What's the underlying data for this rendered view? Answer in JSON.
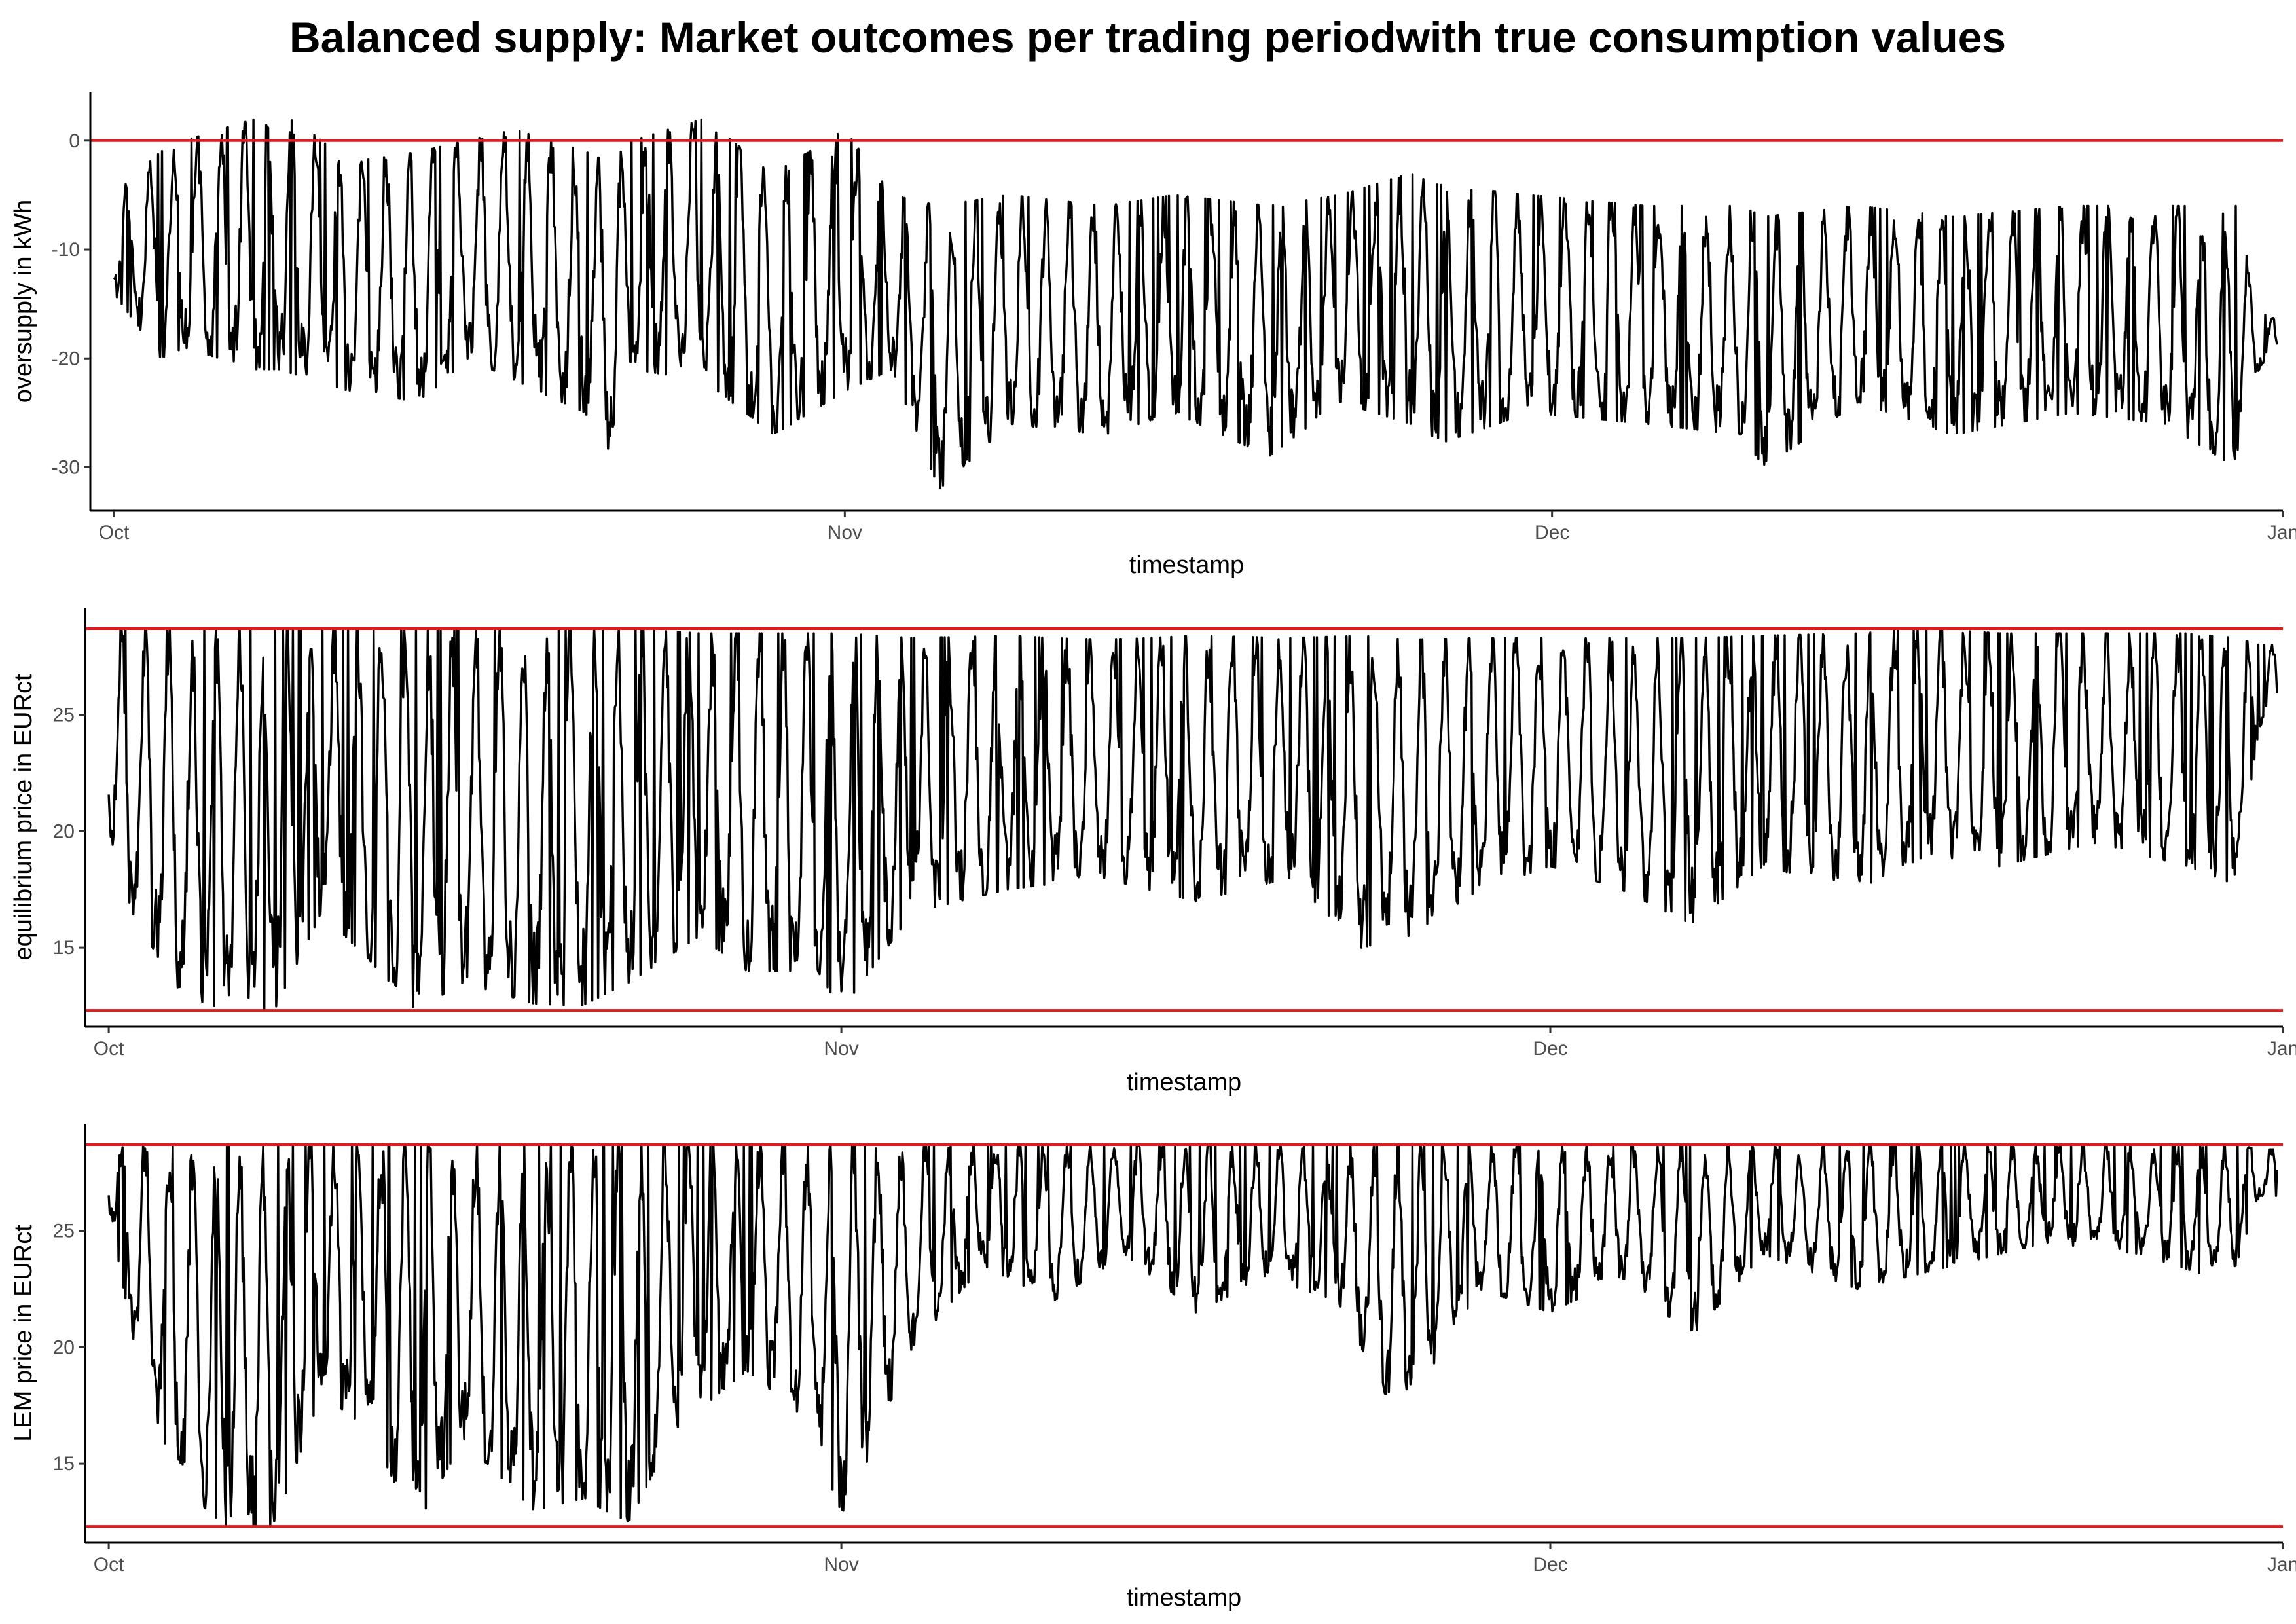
{
  "title": "Balanced supply: Market outcomes per trading periodwith true consumption values",
  "colors": {
    "series": "#000000",
    "reference": "#e41a1c"
  },
  "chart_data": [
    {
      "type": "line",
      "xlabel": "timestamp",
      "ylabel": "oversupply in kWh",
      "x_range": [
        "2023-09-30",
        "2024-01-01"
      ],
      "ylim": [
        -34,
        4.5
      ],
      "yticks": [
        {
          "value": 0,
          "label": "0"
        },
        {
          "value": -10,
          "label": "-10"
        },
        {
          "value": -20,
          "label": "-20"
        },
        {
          "value": -30,
          "label": "-30"
        }
      ],
      "xticks": [
        {
          "date": "2023-10-01",
          "label": "Oct"
        },
        {
          "date": "2023-11-01",
          "label": "Nov"
        },
        {
          "date": "2023-12-01",
          "label": "Dec"
        },
        {
          "date": "2024-01-01",
          "label": "Jan"
        }
      ],
      "hlines": [
        0
      ],
      "series_start": "2023-10-01",
      "series_end": "2023-12-31",
      "envelope": [
        {
          "date": "2023-10-01",
          "max": -5,
          "min": -14
        },
        {
          "date": "2023-10-03",
          "max": -1,
          "min": -20
        },
        {
          "date": "2023-10-04",
          "max": 0,
          "min": -19
        },
        {
          "date": "2023-10-07",
          "max": 2,
          "min": -21
        },
        {
          "date": "2023-10-08",
          "max": 3,
          "min": -21
        },
        {
          "date": "2023-10-11",
          "max": -2,
          "min": -23
        },
        {
          "date": "2023-10-14",
          "max": -1,
          "min": -24
        },
        {
          "date": "2023-10-16",
          "max": 0,
          "min": -20
        },
        {
          "date": "2023-10-18",
          "max": 1,
          "min": -22
        },
        {
          "date": "2023-10-21",
          "max": -1,
          "min": -25
        },
        {
          "date": "2023-10-22",
          "max": -2,
          "min": -29
        },
        {
          "date": "2023-10-23",
          "max": 0,
          "min": -21
        },
        {
          "date": "2023-10-26",
          "max": 2,
          "min": -22
        },
        {
          "date": "2023-10-29",
          "max": -3,
          "min": -27
        },
        {
          "date": "2023-11-01",
          "max": 1,
          "min": -23
        },
        {
          "date": "2023-11-03",
          "max": -5,
          "min": -21
        },
        {
          "date": "2023-11-05",
          "max": -6,
          "min": -32
        },
        {
          "date": "2023-11-08",
          "max": -5,
          "min": -26
        },
        {
          "date": "2023-11-12",
          "max": -6,
          "min": -27
        },
        {
          "date": "2023-11-15",
          "max": -5,
          "min": -25
        },
        {
          "date": "2023-11-19",
          "max": -6,
          "min": -29
        },
        {
          "date": "2023-11-22",
          "max": -5,
          "min": -24
        },
        {
          "date": "2023-11-25",
          "max": -3,
          "min": -26
        },
        {
          "date": "2023-11-26",
          "max": -4,
          "min": -28
        },
        {
          "date": "2023-11-30",
          "max": -5,
          "min": -25
        },
        {
          "date": "2023-12-05",
          "max": -6,
          "min": -26
        },
        {
          "date": "2023-12-09",
          "max": -6,
          "min": -27
        },
        {
          "date": "2023-12-10",
          "max": -7,
          "min": -30
        },
        {
          "date": "2023-12-14",
          "max": -6,
          "min": -24
        },
        {
          "date": "2023-12-18",
          "max": -7,
          "min": -27
        },
        {
          "date": "2023-12-23",
          "max": -6,
          "min": -25
        },
        {
          "date": "2023-12-27",
          "max": -6,
          "min": -26
        },
        {
          "date": "2023-12-30",
          "max": -6,
          "min": -30
        },
        {
          "date": "2023-12-31",
          "max": -16,
          "min": -21
        }
      ]
    },
    {
      "type": "line",
      "xlabel": "timestamp",
      "ylabel": "equilibrium price in EURct",
      "x_range": [
        "2023-09-30",
        "2024-01-01"
      ],
      "ylim": [
        11.6,
        29.6
      ],
      "yticks": [
        {
          "value": 25,
          "label": "25"
        },
        {
          "value": 20,
          "label": "20"
        },
        {
          "value": 15,
          "label": "15"
        }
      ],
      "xticks": [
        {
          "date": "2023-10-01",
          "label": "Oct"
        },
        {
          "date": "2023-11-01",
          "label": "Nov"
        },
        {
          "date": "2023-12-01",
          "label": "Dec"
        },
        {
          "date": "2024-01-01",
          "label": "Jan"
        }
      ],
      "hlines": [
        28.7,
        12.3
      ],
      "series_start": "2023-10-01",
      "series_end": "2023-12-31",
      "envelope": [
        {
          "date": "2023-10-01",
          "max": 28.7,
          "min": 20
        },
        {
          "date": "2023-10-02",
          "max": 28.7,
          "min": 16.5
        },
        {
          "date": "2023-10-04",
          "max": 28.7,
          "min": 13
        },
        {
          "date": "2023-10-06",
          "max": 28.7,
          "min": 12.3
        },
        {
          "date": "2023-10-08",
          "max": 28.7,
          "min": 12.3
        },
        {
          "date": "2023-10-10",
          "max": 28.7,
          "min": 16.5
        },
        {
          "date": "2023-10-12",
          "max": 28.7,
          "min": 14.5
        },
        {
          "date": "2023-10-14",
          "max": 28.7,
          "min": 12.3
        },
        {
          "date": "2023-10-16",
          "max": 28.7,
          "min": 13.5
        },
        {
          "date": "2023-10-19",
          "max": 28.7,
          "min": 12.6
        },
        {
          "date": "2023-10-21",
          "max": 28.7,
          "min": 12.5
        },
        {
          "date": "2023-10-23",
          "max": 28.7,
          "min": 13.5
        },
        {
          "date": "2023-10-26",
          "max": 28.5,
          "min": 15.5
        },
        {
          "date": "2023-10-28",
          "max": 28.5,
          "min": 14
        },
        {
          "date": "2023-10-31",
          "max": 28.5,
          "min": 14
        },
        {
          "date": "2023-11-01",
          "max": 28.5,
          "min": 12.3
        },
        {
          "date": "2023-11-04",
          "max": 28.3,
          "min": 16.5
        },
        {
          "date": "2023-11-08",
          "max": 28.4,
          "min": 17.5
        },
        {
          "date": "2023-11-12",
          "max": 28.2,
          "min": 18
        },
        {
          "date": "2023-11-16",
          "max": 28.4,
          "min": 17
        },
        {
          "date": "2023-11-20",
          "max": 28.3,
          "min": 18
        },
        {
          "date": "2023-11-23",
          "max": 28.4,
          "min": 15
        },
        {
          "date": "2023-11-25",
          "max": 28.2,
          "min": 15.5
        },
        {
          "date": "2023-11-28",
          "max": 28.3,
          "min": 17.5
        },
        {
          "date": "2023-12-01",
          "max": 28.3,
          "min": 18.5
        },
        {
          "date": "2023-12-04",
          "max": 28.3,
          "min": 17.5
        },
        {
          "date": "2023-12-07",
          "max": 28.3,
          "min": 16
        },
        {
          "date": "2023-12-10",
          "max": 28.4,
          "min": 18.5
        },
        {
          "date": "2023-12-14",
          "max": 28.5,
          "min": 17.5
        },
        {
          "date": "2023-12-17",
          "max": 28.7,
          "min": 19
        },
        {
          "date": "2023-12-20",
          "max": 28.5,
          "min": 18.5
        },
        {
          "date": "2023-12-24",
          "max": 28.5,
          "min": 19.5
        },
        {
          "date": "2023-12-28",
          "max": 28.5,
          "min": 18.5
        },
        {
          "date": "2023-12-30",
          "max": 28.3,
          "min": 17.7
        },
        {
          "date": "2023-12-31",
          "max": 28,
          "min": 24.5
        }
      ]
    },
    {
      "type": "line",
      "xlabel": "timestamp",
      "ylabel": "LEM price in EURct",
      "x_range": [
        "2023-09-30",
        "2024-01-01"
      ],
      "ylim": [
        11.6,
        29.6
      ],
      "yticks": [
        {
          "value": 25,
          "label": "25"
        },
        {
          "value": 20,
          "label": "20"
        },
        {
          "value": 15,
          "label": "15"
        }
      ],
      "xticks": [
        {
          "date": "2023-10-01",
          "label": "Oct"
        },
        {
          "date": "2023-11-01",
          "label": "Nov"
        },
        {
          "date": "2023-12-01",
          "label": "Dec"
        },
        {
          "date": "2024-01-01",
          "label": "Jan"
        }
      ],
      "hlines": [
        28.7,
        12.3
      ],
      "series_start": "2023-10-01",
      "series_end": "2023-12-31",
      "envelope": [
        {
          "date": "2023-10-01",
          "max": 28.7,
          "min": 26
        },
        {
          "date": "2023-10-02",
          "max": 28.7,
          "min": 20.5
        },
        {
          "date": "2023-10-03",
          "max": 28.7,
          "min": 17
        },
        {
          "date": "2023-10-04",
          "max": 28.7,
          "min": 14
        },
        {
          "date": "2023-10-06",
          "max": 28.7,
          "min": 12.3
        },
        {
          "date": "2023-10-08",
          "max": 28.7,
          "min": 12.3
        },
        {
          "date": "2023-10-10",
          "max": 28.7,
          "min": 18
        },
        {
          "date": "2023-10-12",
          "max": 28.7,
          "min": 16.5
        },
        {
          "date": "2023-10-14",
          "max": 28.7,
          "min": 12.3
        },
        {
          "date": "2023-10-16",
          "max": 28.7,
          "min": 16
        },
        {
          "date": "2023-10-19",
          "max": 28.7,
          "min": 13
        },
        {
          "date": "2023-10-21",
          "max": 28.7,
          "min": 13.5
        },
        {
          "date": "2023-10-23",
          "max": 28.7,
          "min": 12.5
        },
        {
          "date": "2023-10-25",
          "max": 28.7,
          "min": 16.5
        },
        {
          "date": "2023-10-28",
          "max": 28.7,
          "min": 19
        },
        {
          "date": "2023-10-31",
          "max": 28.7,
          "min": 16.5
        },
        {
          "date": "2023-11-01",
          "max": 28.7,
          "min": 12.3
        },
        {
          "date": "2023-11-04",
          "max": 28.7,
          "min": 20
        },
        {
          "date": "2023-11-07",
          "max": 28.7,
          "min": 23.5
        },
        {
          "date": "2023-11-10",
          "max": 28.7,
          "min": 22
        },
        {
          "date": "2023-11-13",
          "max": 28.7,
          "min": 24
        },
        {
          "date": "2023-11-16",
          "max": 28.7,
          "min": 21.5
        },
        {
          "date": "2023-11-19",
          "max": 28.7,
          "min": 23
        },
        {
          "date": "2023-11-22",
          "max": 28.7,
          "min": 22
        },
        {
          "date": "2023-11-24",
          "max": 28.7,
          "min": 18
        },
        {
          "date": "2023-11-25",
          "max": 28.7,
          "min": 17.5
        },
        {
          "date": "2023-11-28",
          "max": 28.7,
          "min": 22.5
        },
        {
          "date": "2023-12-01",
          "max": 28.7,
          "min": 21.5
        },
        {
          "date": "2023-12-04",
          "max": 28.7,
          "min": 23
        },
        {
          "date": "2023-12-07",
          "max": 28.7,
          "min": 20.5
        },
        {
          "date": "2023-12-10",
          "max": 28.7,
          "min": 24
        },
        {
          "date": "2023-12-14",
          "max": 28.7,
          "min": 22.5
        },
        {
          "date": "2023-12-18",
          "max": 28.7,
          "min": 23.5
        },
        {
          "date": "2023-12-22",
          "max": 28.7,
          "min": 24.5
        },
        {
          "date": "2023-12-26",
          "max": 28.7,
          "min": 24
        },
        {
          "date": "2023-12-29",
          "max": 28.7,
          "min": 23
        },
        {
          "date": "2023-12-30",
          "max": 28.7,
          "min": 23.5
        },
        {
          "date": "2023-12-31",
          "max": 28.5,
          "min": 26.5
        }
      ]
    }
  ]
}
